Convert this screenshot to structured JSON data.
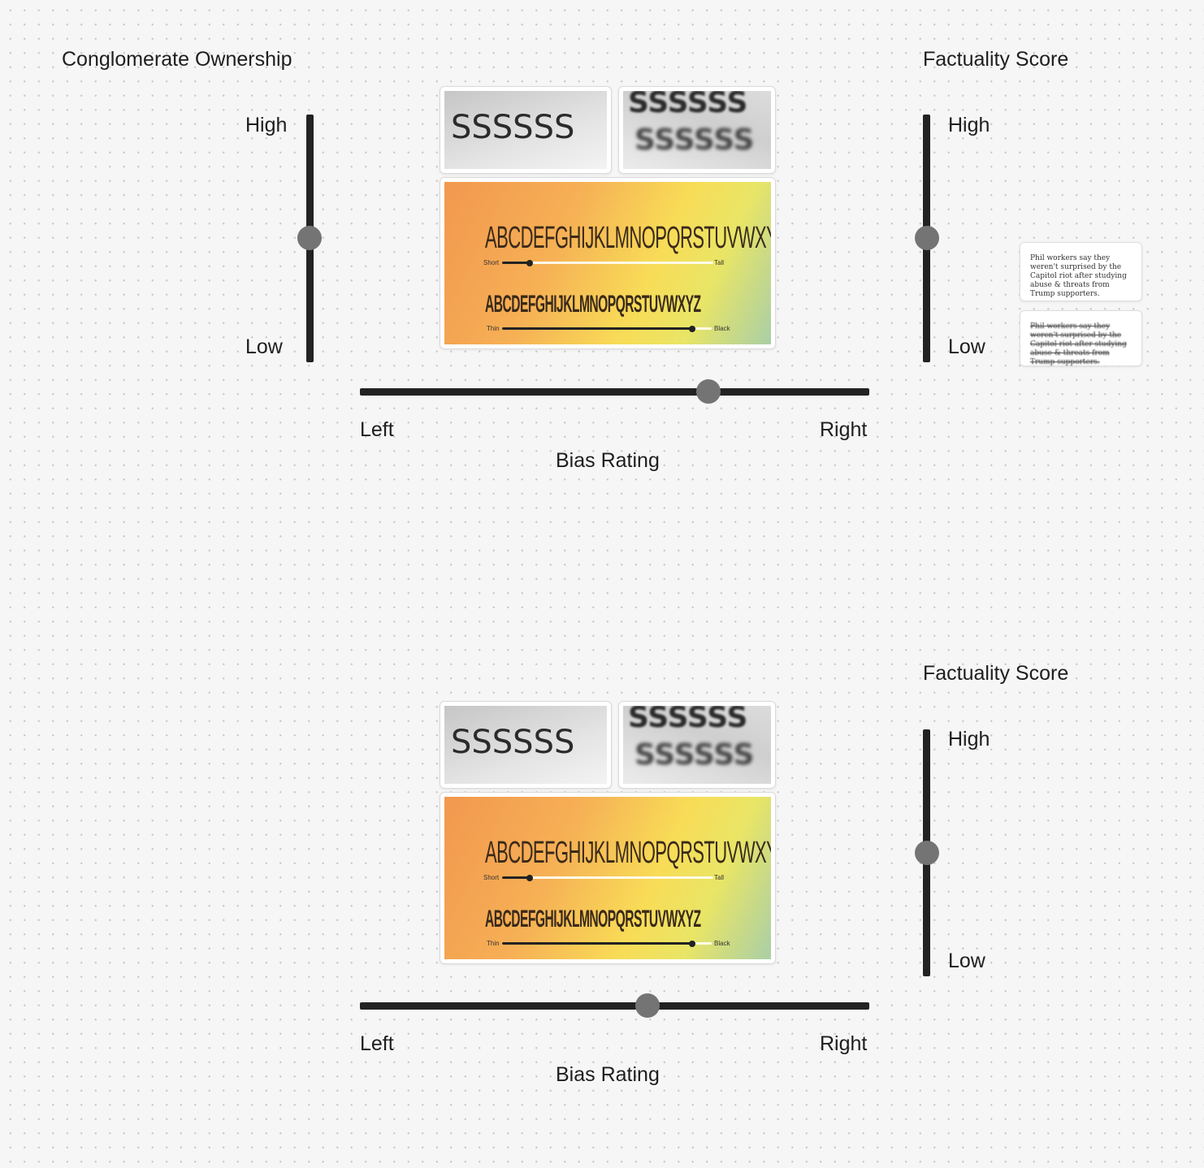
{
  "section1": {
    "ownership": {
      "title": "Conglomerate Ownership",
      "high": "High",
      "low": "Low",
      "level": 0.5
    },
    "factuality": {
      "title": "Factuality Score",
      "high": "High",
      "low": "Low",
      "level": 0.5
    },
    "bias": {
      "title": "Bias Rating",
      "left": "Left",
      "right": "Right",
      "position": 0.68
    }
  },
  "section2": {
    "factuality": {
      "title": "Factuality Score",
      "high": "High",
      "low": "Low",
      "level": 0.5
    },
    "bias": {
      "title": "Bias Rating",
      "left": "Left",
      "right": "Right",
      "position": 0.56
    }
  },
  "font_preview": {
    "sample_s": "SSSSSS",
    "alphabet": "ABCDEFGHIJKLMNOPQRSTUVWXYZ",
    "short": "Short",
    "tall": "Tall",
    "thin": "Thin",
    "black": "Black"
  },
  "notes": {
    "card1": "Phil workers say they weren't surprised by the Capitol riot after studying abuse & threats from Trump supporters.",
    "card2": "Phil workers say they weren't surprised by the Capitol riot after studying abuse & threats from Trump supporters."
  }
}
